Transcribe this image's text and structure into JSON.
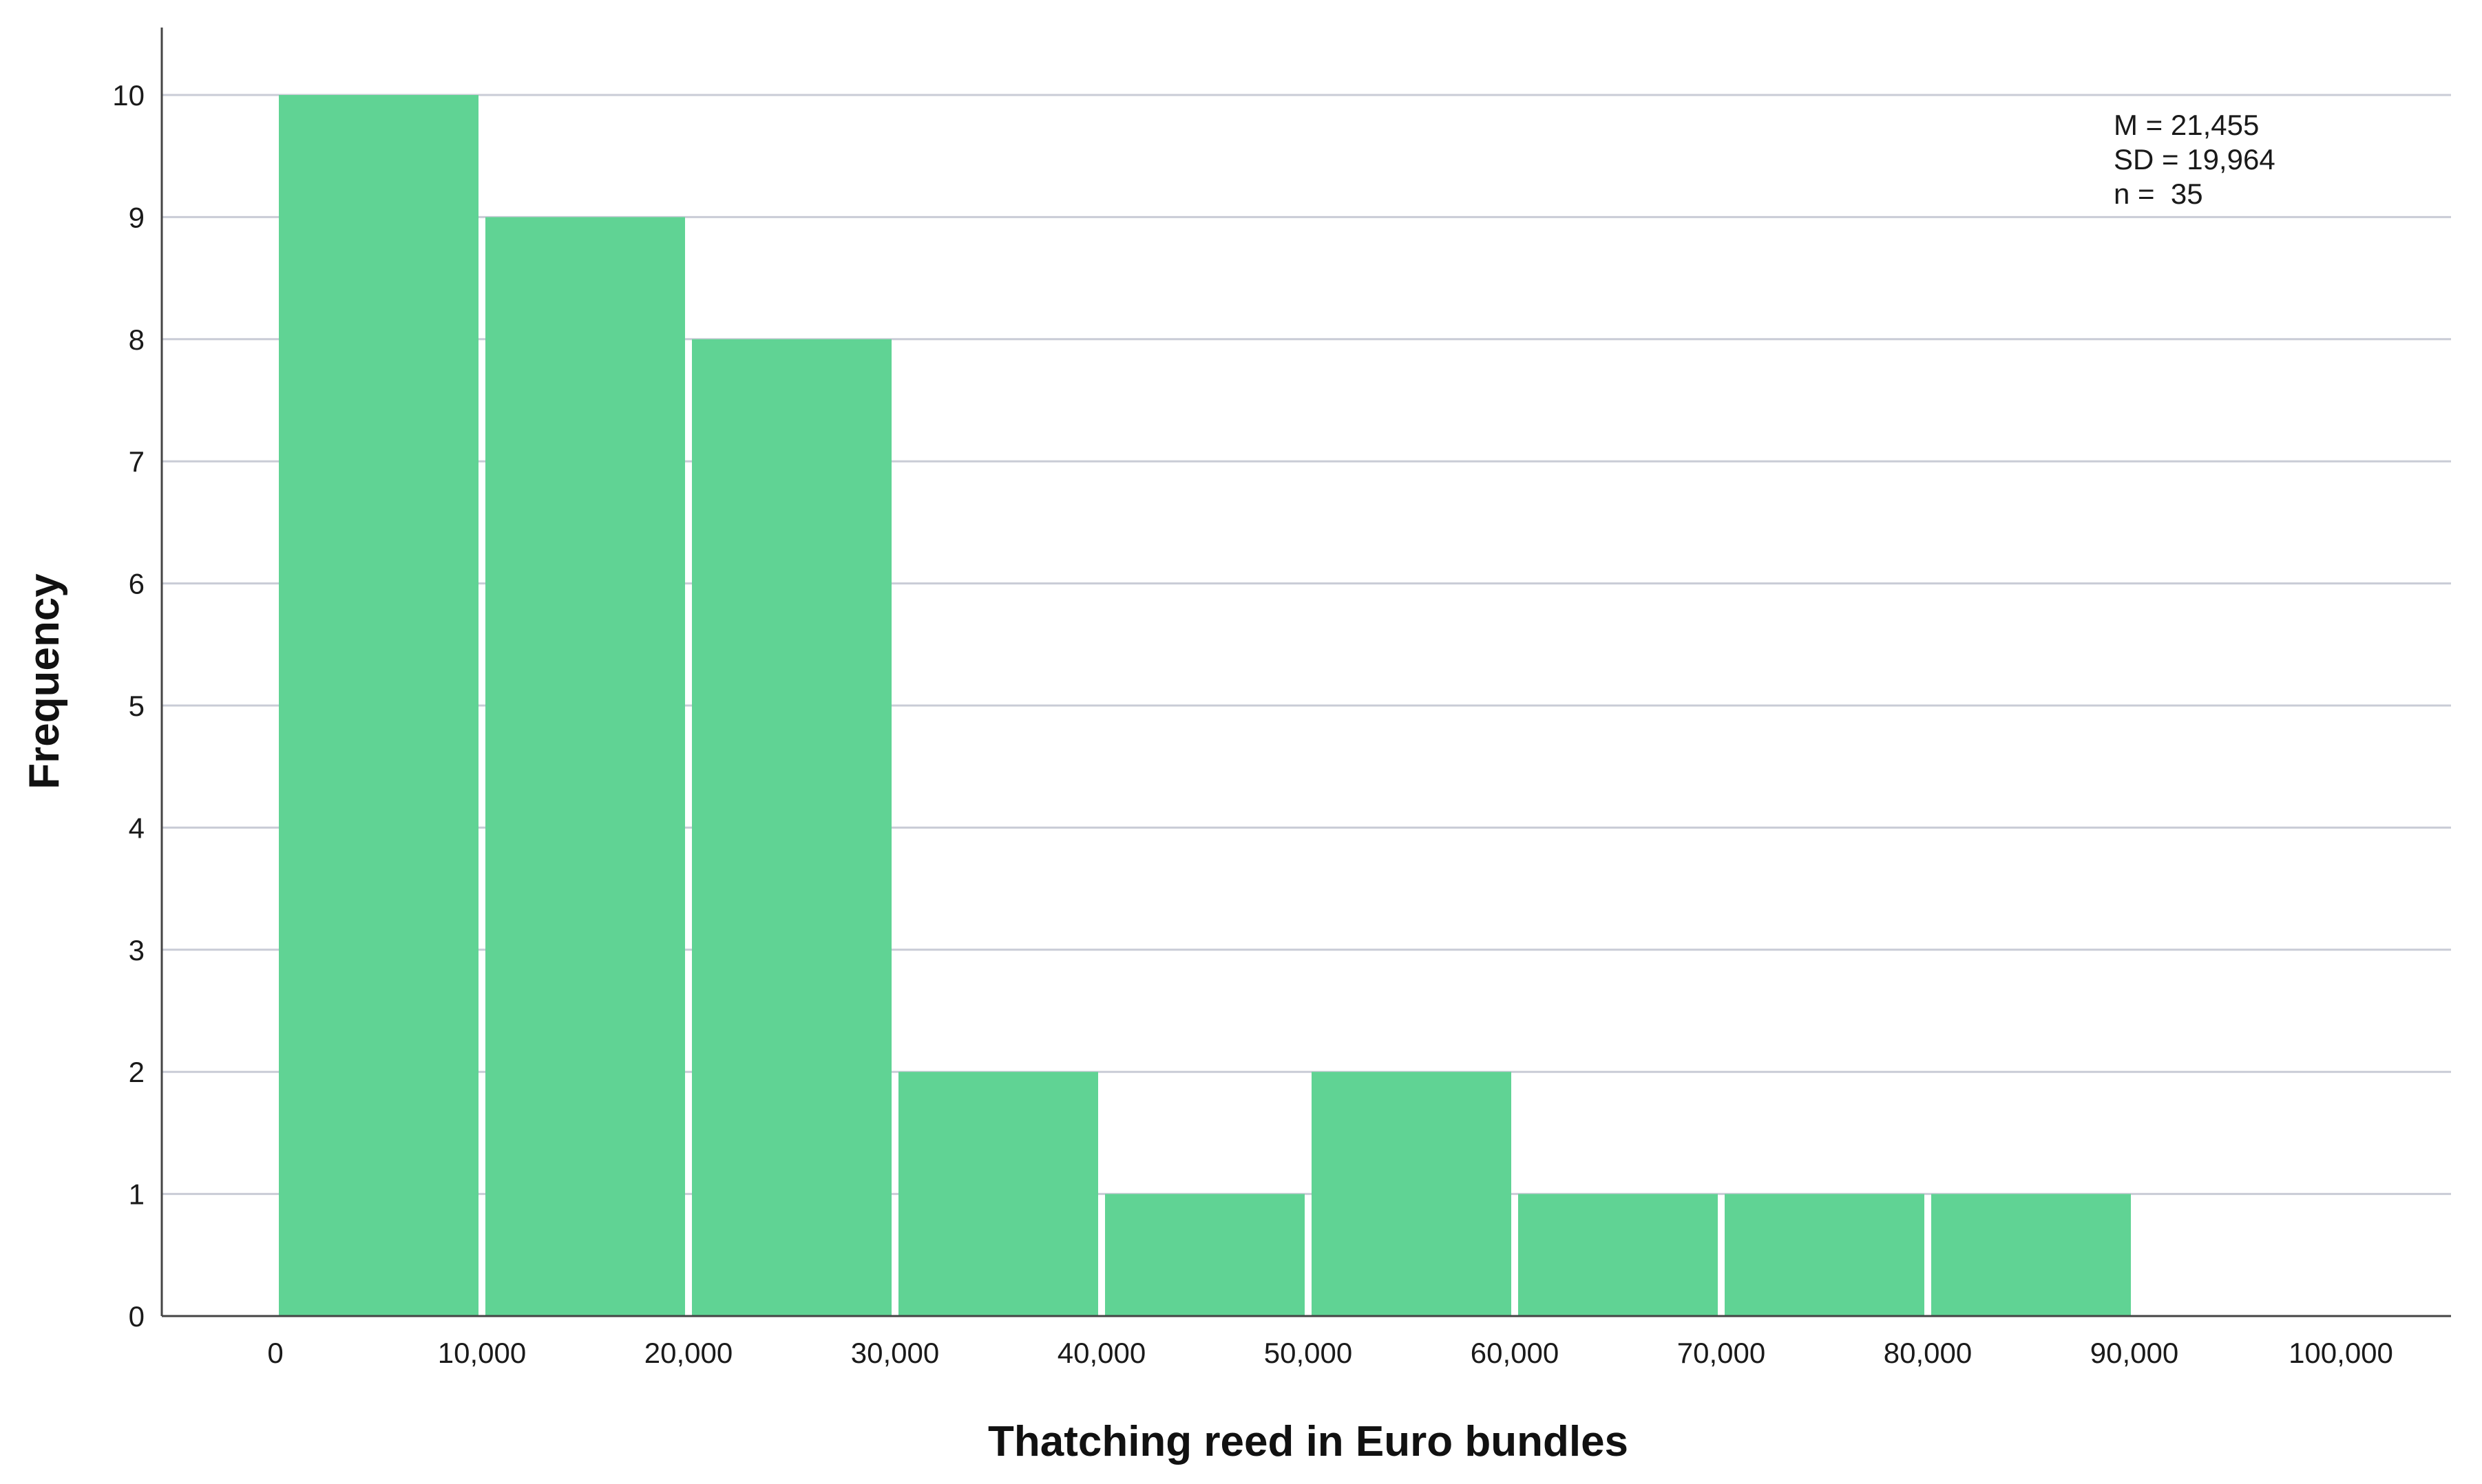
{
  "chart_data": {
    "type": "bar",
    "subtype": "histogram",
    "title": "",
    "xlabel": "Thatching reed in Euro bundles",
    "ylabel": "Frequency",
    "xlim": [
      -10000,
      105000
    ],
    "ylim": [
      0,
      10.5
    ],
    "x_ticks": [
      0,
      10000,
      20000,
      30000,
      40000,
      50000,
      60000,
      70000,
      80000,
      90000,
      100000
    ],
    "x_tick_labels": [
      "0",
      "10,000",
      "20,000",
      "30,000",
      "40,000",
      "50,000",
      "60,000",
      "70,000",
      "80,000",
      "90,000",
      "100,000"
    ],
    "y_ticks": [
      0,
      1,
      2,
      3,
      4,
      5,
      6,
      7,
      8,
      9,
      10
    ],
    "y_tick_labels": [
      "0",
      "1",
      "2",
      "3",
      "4",
      "5",
      "6",
      "7",
      "8",
      "9",
      "10"
    ],
    "bins": [
      {
        "start": 0,
        "end": 10000,
        "count": 10
      },
      {
        "start": 10000,
        "end": 20000,
        "count": 9
      },
      {
        "start": 20000,
        "end": 30000,
        "count": 8
      },
      {
        "start": 30000,
        "end": 40000,
        "count": 2
      },
      {
        "start": 40000,
        "end": 50000,
        "count": 1
      },
      {
        "start": 50000,
        "end": 60000,
        "count": 2
      },
      {
        "start": 60000,
        "end": 70000,
        "count": 1
      },
      {
        "start": 70000,
        "end": 80000,
        "count": 1
      },
      {
        "start": 80000,
        "end": 90000,
        "count": 1
      }
    ],
    "stats": {
      "mean": "M = 21,455",
      "sd": "SD = 19,964",
      "n": "n =  35"
    },
    "grid": true,
    "legend": "none",
    "bar_color": "#60d394",
    "grid_color": "#c9ccd6"
  }
}
